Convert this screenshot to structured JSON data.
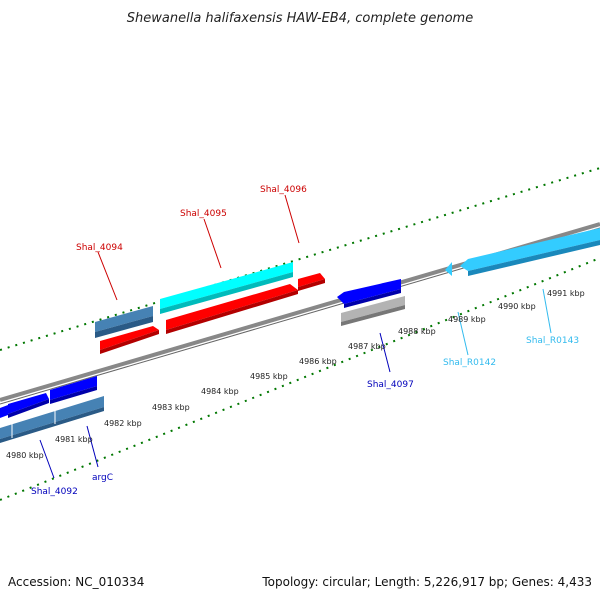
{
  "title": "Shewanella halifaxensis HAW-EB4, complete genome",
  "footer": {
    "accession": "Accession: NC_010334",
    "summary": "Topology: circular; Length: 5,226,917 bp; Genes: 4,433"
  },
  "ticks": [
    "4980 kbp",
    "4981 kbp",
    "4982 kbp",
    "4983 kbp",
    "4984 kbp",
    "4985 kbp",
    "4986 kbp",
    "4987 kbp",
    "4988 kbp",
    "4989 kbp",
    "4990 kbp",
    "4991 kbp"
  ],
  "labels": {
    "shal_4094": "Shal_4094",
    "shal_4095": "Shal_4095",
    "shal_4096": "Shal_4096",
    "shal_4097": "Shal_4097",
    "shal_4092": "Shal_4092",
    "argc": "argC",
    "shal_r0142": "Shal_R0142",
    "shal_r0143": "Shal_R0143"
  },
  "colors": {
    "red": "#ff0000",
    "cyan": "#00ffff",
    "sky": "#33ccff",
    "blue": "#0000ff",
    "steel": "#4682b4",
    "gray": "#b3b3b3",
    "backbone": "#888888",
    "tick_green": "#007700",
    "label_red": "#cc0000",
    "label_blue": "#0000bb",
    "label_cyan": "#33bbee"
  }
}
